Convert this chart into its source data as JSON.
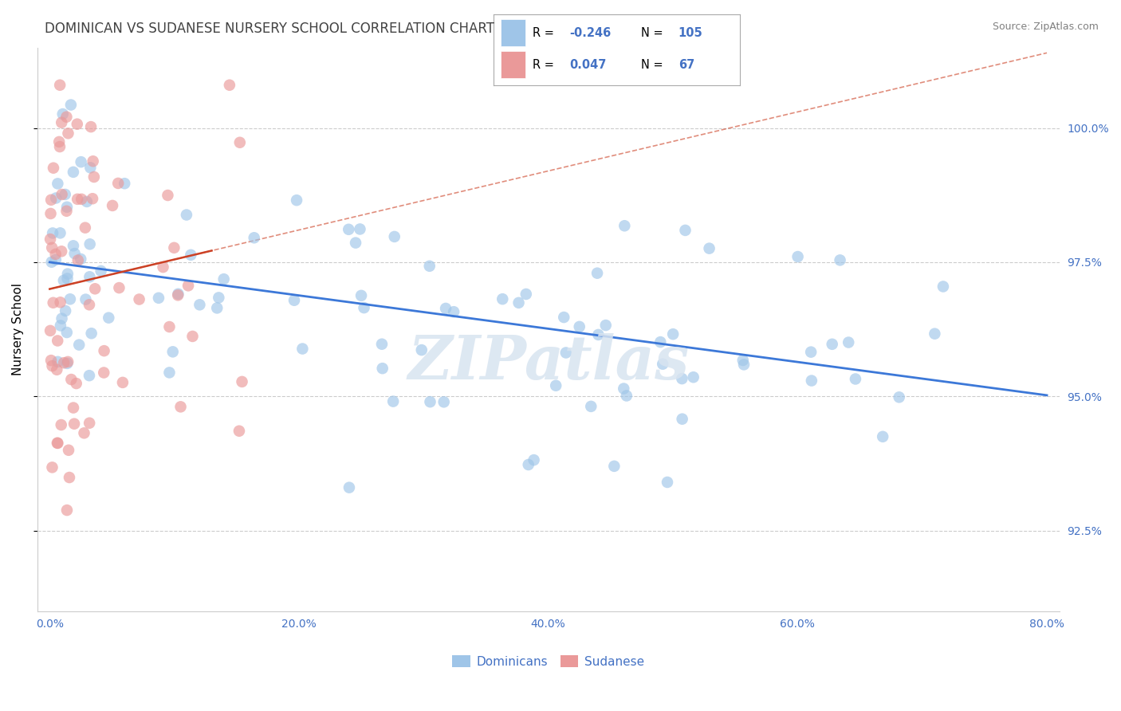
{
  "title": "DOMINICAN VS SUDANESE NURSERY SCHOOL CORRELATION CHART",
  "source": "Source: ZipAtlas.com",
  "ylabel": "Nursery School",
  "xlim": [
    -1.0,
    81.0
  ],
  "ylim": [
    91.0,
    101.5
  ],
  "yticks": [
    92.5,
    95.0,
    97.5,
    100.0
  ],
  "xticks": [
    0.0,
    20.0,
    40.0,
    60.0,
    80.0
  ],
  "dominican_R": -0.246,
  "dominican_N": 105,
  "sudanese_R": 0.047,
  "sudanese_N": 67,
  "blue_color": "#9fc5e8",
  "pink_color": "#ea9999",
  "blue_line_color": "#3c78d8",
  "pink_line_color": "#cc4125",
  "title_color": "#434343",
  "axis_label_color": "#4472c4",
  "tick_color": "#4472c4",
  "watermark": "ZIPatlas",
  "background_color": "#ffffff",
  "grid_color": "#cccccc"
}
